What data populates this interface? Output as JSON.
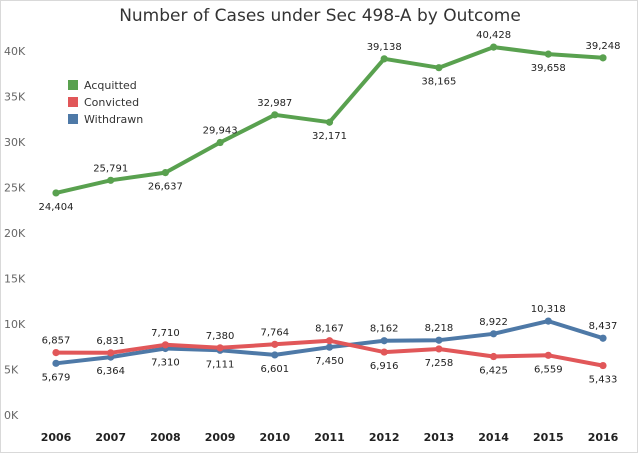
{
  "chart_data": {
    "type": "line",
    "title": "Number of Cases under Sec 498-A by Outcome",
    "xlabel": "",
    "ylabel": "",
    "x": [
      "2006",
      "2007",
      "2008",
      "2009",
      "2010",
      "2011",
      "2012",
      "2013",
      "2014",
      "2015",
      "2016"
    ],
    "ylim": [
      0,
      42000
    ],
    "yticks": [
      0,
      5000,
      10000,
      15000,
      20000,
      25000,
      30000,
      35000,
      40000
    ],
    "ytick_labels": [
      "0K",
      "5K",
      "10K",
      "15K",
      "20K",
      "25K",
      "30K",
      "35K",
      "40K"
    ],
    "grid": false,
    "legend_position": "top-left",
    "series": [
      {
        "name": "Acquitted",
        "color": "#59a14f",
        "values": [
          24404,
          25791,
          26637,
          29943,
          32987,
          32171,
          39138,
          38165,
          40428,
          39658,
          39248
        ],
        "labels": [
          "24,404",
          "25,791",
          "26,637",
          "29,943",
          "32,987",
          "32,171",
          "39,138",
          "38,165",
          "40,428",
          "39,658",
          "39,248"
        ],
        "label_pos": [
          "below",
          "above",
          "below",
          "above",
          "above",
          "below",
          "above",
          "below",
          "above",
          "below",
          "above"
        ]
      },
      {
        "name": "Convicted",
        "color": "#e15759",
        "values": [
          6857,
          6831,
          7710,
          7380,
          7764,
          8167,
          6916,
          7258,
          6425,
          6559,
          5433
        ],
        "labels": [
          "6,857",
          "6,831",
          "7,710",
          "7,380",
          "7,764",
          "8,167",
          "6,916",
          "7,258",
          "6,425",
          "6,559",
          "5,433"
        ],
        "label_pos": [
          "above",
          "above",
          "above",
          "above",
          "above",
          "above",
          "below",
          "below",
          "below",
          "below",
          "below"
        ]
      },
      {
        "name": "Withdrawn",
        "color": "#4e79a7",
        "values": [
          5679,
          6364,
          7310,
          7111,
          6601,
          7450,
          8162,
          8218,
          8922,
          10318,
          8437
        ],
        "labels": [
          "5,679",
          "6,364",
          "7,310",
          "7,111",
          "6,601",
          "7,450",
          "8,162",
          "8,218",
          "8,922",
          "10,318",
          "8,437"
        ],
        "label_pos": [
          "below",
          "below",
          "below",
          "below",
          "below",
          "below",
          "above",
          "above",
          "above",
          "above",
          "above"
        ]
      }
    ]
  }
}
